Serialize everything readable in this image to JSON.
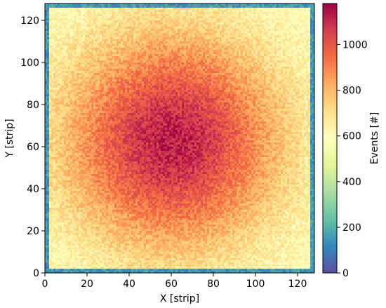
{
  "chart_data": {
    "type": "heatmap",
    "title": "",
    "xlabel": "X [strip]",
    "ylabel": "Y [strip]",
    "xlim": [
      0,
      128
    ],
    "ylim": [
      0,
      128
    ],
    "x_ticks": [
      "0",
      "20",
      "40",
      "60",
      "80",
      "100",
      "120"
    ],
    "y_ticks": [
      "0",
      "20",
      "40",
      "60",
      "80",
      "100",
      "120"
    ],
    "grid": false,
    "bins": 128,
    "distribution": {
      "shape": "radial peak",
      "center_x": 60,
      "center_y": 62,
      "peak_events": 1120,
      "interior_edge_events": 620,
      "corner_events": 560,
      "border_strip_events": 150
    },
    "colorbar": {
      "label": "Events [#]",
      "min": 0,
      "max": 1180,
      "ticks": [
        "0",
        "200",
        "400",
        "600",
        "800",
        "1000"
      ],
      "colormap": [
        "#5e4fa2",
        "#3288bd",
        "#66c2a5",
        "#abdda4",
        "#e6f598",
        "#ffffbf",
        "#fee08b",
        "#fdae61",
        "#f46d43",
        "#d53e4f",
        "#9e0142"
      ]
    }
  }
}
